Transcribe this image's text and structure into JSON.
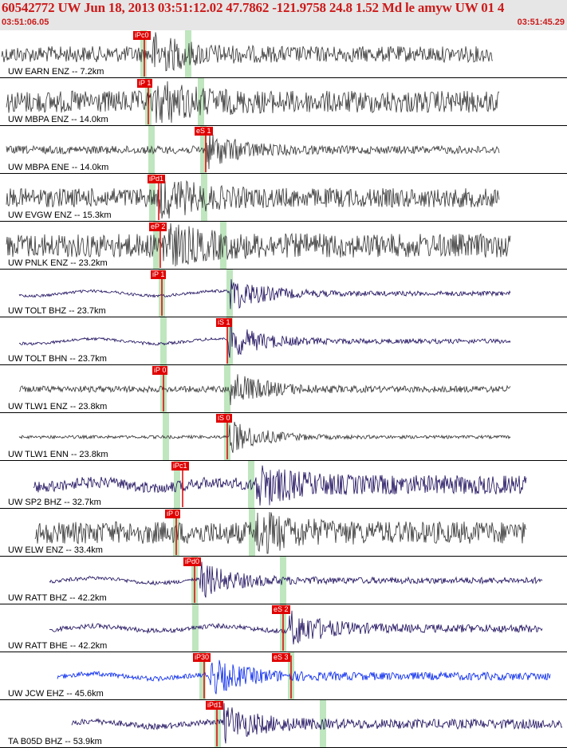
{
  "header": {
    "title": "60542772 UW Jun 18, 2013 03:51:12.02   47.7862 -121.9758 24.8 1.52 Md le amyw UW 01    4",
    "time_start": "03:51:06.05",
    "time_end": "03:51:45.29"
  },
  "colors": {
    "title": "#cc1a1a",
    "trace_gray": "#333333",
    "trace_navy": "#1a0a5a",
    "trace_blue": "#0022ee",
    "pick": "#e00000",
    "window": "#bfe6bf"
  },
  "traces": [
    {
      "label": "UW EARN ENZ -- 7.2km",
      "pick": "iPc0",
      "color": "gray"
    },
    {
      "label": "UW MBPA ENZ -- 14.0km",
      "pick": "iP 1",
      "color": "gray"
    },
    {
      "label": "UW MBPA ENE -- 14.0km",
      "pick": "eS 1",
      "color": "gray"
    },
    {
      "label": "UW EVGW ENZ -- 15.3km",
      "pick": "iPd1",
      "color": "gray"
    },
    {
      "label": "UW PNLK ENZ -- 23.2km",
      "pick": "eP 2",
      "color": "gray"
    },
    {
      "label": "UW TOLT BHZ -- 23.7km",
      "pick": "iP 1",
      "color": "navy"
    },
    {
      "label": "UW TOLT BHN -- 23.7km",
      "pick": "iS 1",
      "color": "navy"
    },
    {
      "label": "UW TLW1 ENZ -- 23.8km",
      "pick": "iP 0",
      "color": "gray"
    },
    {
      "label": "UW TLW1 ENN -- 23.8km",
      "pick": "iS 0",
      "color": "gray"
    },
    {
      "label": "UW SP2 BHZ -- 32.7km",
      "pick": "iPc1",
      "color": "navy"
    },
    {
      "label": "UW ELW ENZ -- 33.4km",
      "pick": "iP 0",
      "color": "gray"
    },
    {
      "label": "UW RATT BHZ -- 42.2km",
      "pick": "iPd0",
      "color": "navy"
    },
    {
      "label": "UW RATT BHE -- 42.2km",
      "pick": "eS 2",
      "color": "navy"
    },
    {
      "label": "UW JCW EHZ -- 45.6km",
      "pick": "iP30",
      "color": "blue",
      "pick2": "eS 3"
    },
    {
      "label": "TA B05D BHZ -- 53.9km",
      "pick": "iPd1",
      "color": "navy"
    }
  ]
}
